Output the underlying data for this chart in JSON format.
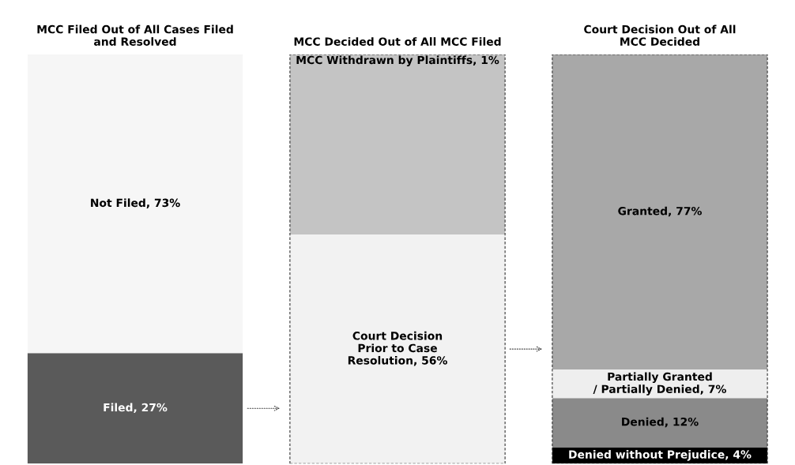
{
  "chart_data": {
    "type": "bar",
    "stacked": true,
    "ylim": [
      0,
      100
    ],
    "tick_labels": "x",
    "categories": [
      "MCC Filed Out of All Cases Filed\nand Resolved",
      "MCC Decided Out of All MCC Filed",
      "Court Decision Out of All\nMCC Decided"
    ],
    "series": [
      {
        "color": "#5a5a5a",
        "values": [
          27,
          null,
          null
        ],
        "value_labels": [
          "Filed, 27%",
          null,
          null
        ]
      },
      {
        "color": "#f6f6f6",
        "values": [
          73,
          null,
          null
        ],
        "value_labels": [
          "Not Filed, 73%",
          null,
          null
        ]
      },
      {
        "color": "#f2f2f2",
        "values": [
          null,
          56,
          null
        ],
        "value_labels": [
          null,
          "Court Decision\nPrior to Case\nResolution, 56%",
          null
        ]
      },
      {
        "color": "#c4c4c4",
        "values": [
          null,
          43,
          null
        ],
        "value_labels": [
          null,
          null,
          null
        ]
      },
      {
        "color": "#c4c4c4",
        "values": [
          null,
          1,
          null
        ],
        "value_labels": [
          null,
          "MCC Withdrawn by Plaintiffs, 1%",
          null
        ]
      },
      {
        "color": "#000000",
        "values": [
          null,
          null,
          4
        ],
        "value_labels": [
          null,
          null,
          "Denied without Prejudice, 4%"
        ]
      },
      {
        "color": "#8a8a8a",
        "values": [
          null,
          null,
          12
        ],
        "value_labels": [
          null,
          null,
          "Denied, 12%"
        ]
      },
      {
        "color": "#eeeeee",
        "values": [
          null,
          null,
          7
        ],
        "value_labels": [
          null,
          null,
          "Partially Granted\n/ Partially Denied, 7%"
        ]
      },
      {
        "color": "#a8a8a8",
        "values": [
          null,
          null,
          77
        ],
        "value_labels": [
          null,
          null,
          "Granted, 77%"
        ]
      }
    ],
    "grid": false
  }
}
